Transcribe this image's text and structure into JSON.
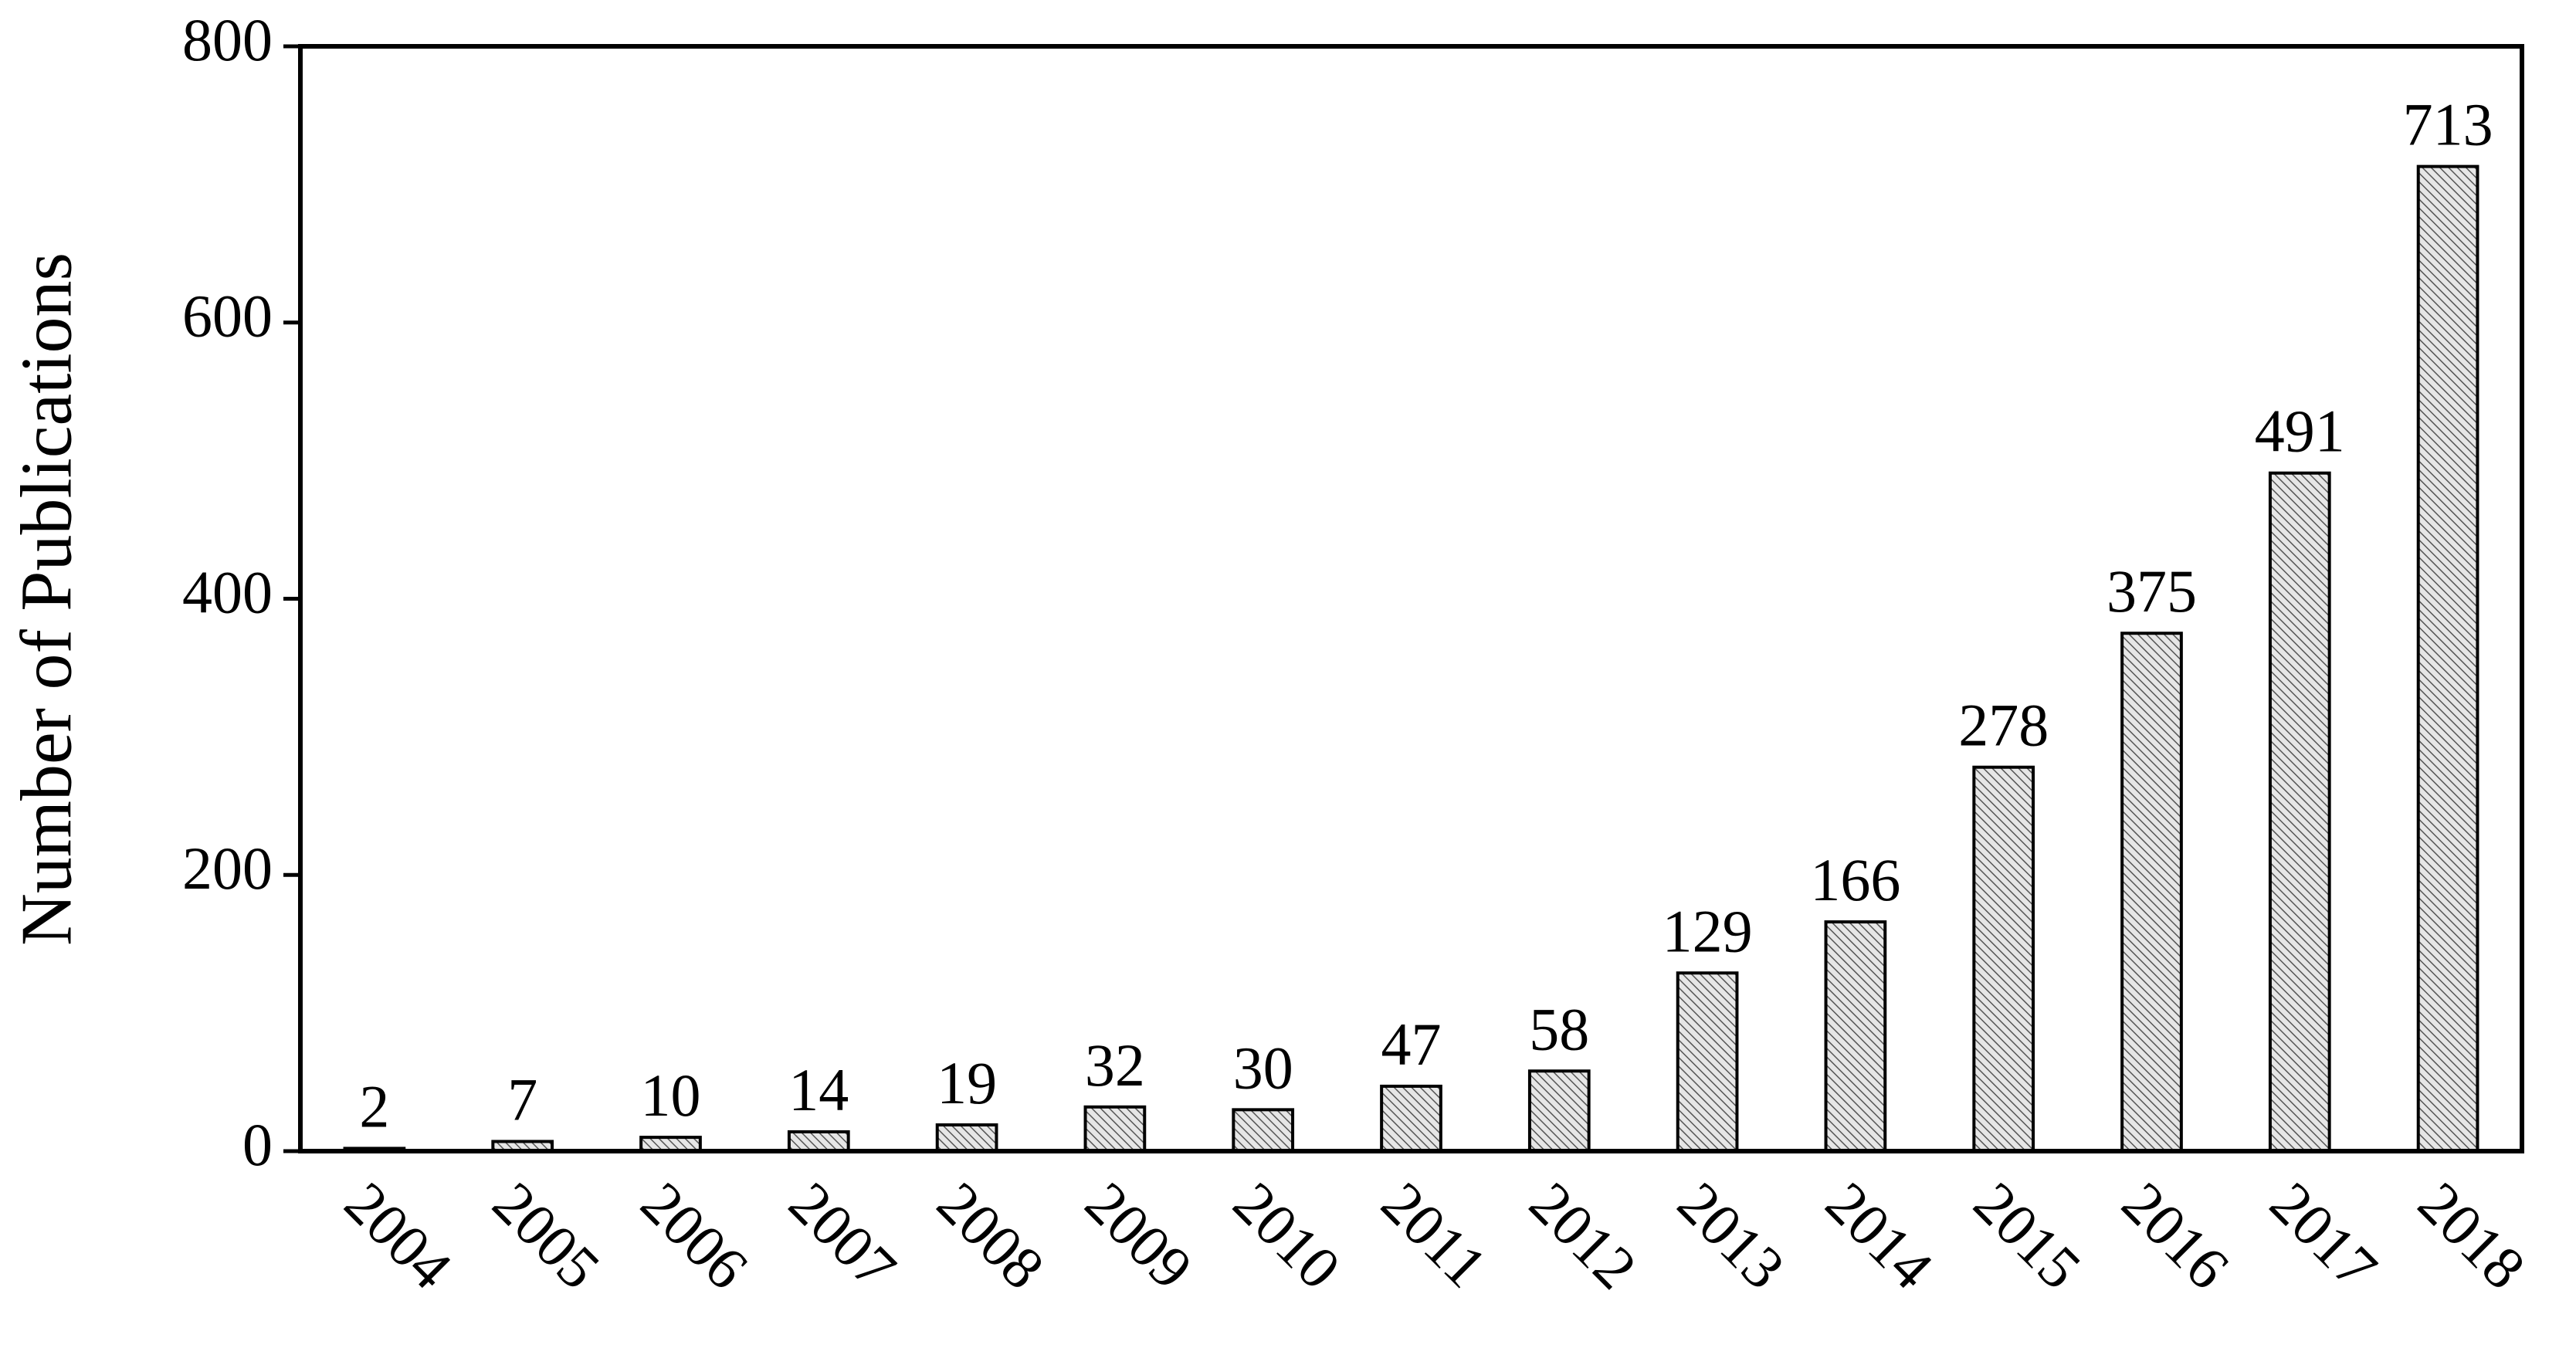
{
  "chart_data": {
    "type": "bar",
    "y_label": "Number of Publications",
    "categories": [
      "2004",
      "2005",
      "2006",
      "2007",
      "2008",
      "2009",
      "2010",
      "2011",
      "2012",
      "2013",
      "2014",
      "2015",
      "2016",
      "2017",
      "2018"
    ],
    "values": [
      2,
      7,
      10,
      14,
      19,
      32,
      30,
      47,
      58,
      129,
      166,
      278,
      375,
      491,
      713
    ],
    "ylim": [
      0,
      800
    ],
    "yticks": [
      0,
      200,
      400,
      600,
      800
    ]
  }
}
